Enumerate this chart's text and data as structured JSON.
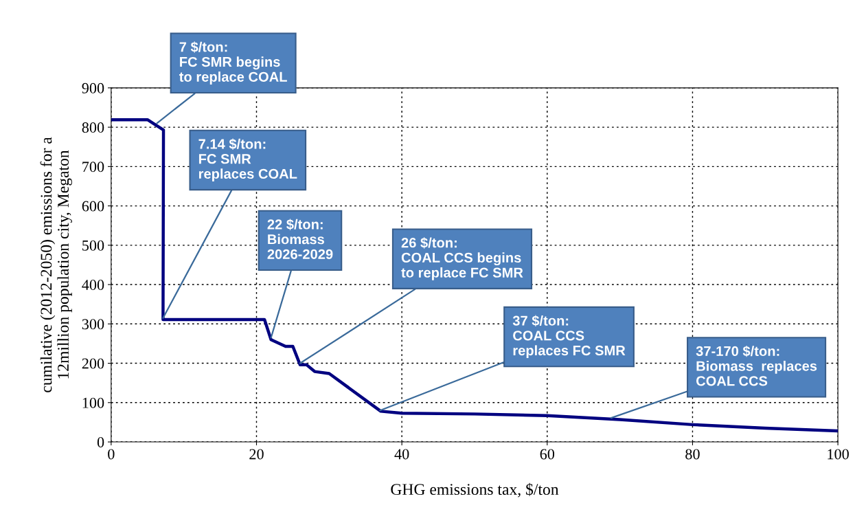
{
  "chart_data": {
    "type": "line",
    "xlabel": "GHG emissions tax, $/ton",
    "ylabel": "cumilative (2012-2050) emissions for a\n12million population city, Megaton",
    "series": [
      {
        "color": "#000080",
        "x": [
          0,
          5,
          7.2,
          7.14,
          21.1,
          22,
          24,
          25,
          26,
          26.9,
          28,
          30,
          37.1,
          40,
          50,
          60,
          70,
          80,
          90,
          100
        ],
        "values": [
          819,
          819,
          793,
          311,
          311,
          260,
          243,
          243,
          196,
          196,
          179,
          174,
          78,
          73,
          71,
          67,
          57,
          44,
          35,
          28
        ]
      }
    ],
    "xlim": [
      0,
      100
    ],
    "xticks": [
      0,
      20,
      40,
      60,
      80,
      100
    ],
    "ylim": [
      0,
      900
    ],
    "yticks": [
      0,
      100,
      200,
      300,
      400,
      500,
      600,
      700,
      800,
      900
    ],
    "grid": true,
    "line_style": "solid",
    "marker": "none",
    "annotations": [
      {
        "text": "7 $/ton:\nFC SMR begins\nto replace COAL",
        "x": 6.3,
        "y": 810
      },
      {
        "text": "7.14 $/ton:\nFC SMR\nreplaces COAL",
        "x": 7.14,
        "y": 315
      },
      {
        "text": "22 $/ton:\nBiomass\n2026-2029",
        "x": 22,
        "y": 265
      },
      {
        "text": "26 $/ton:\nCOAL CCS begins\nto replace FC SMR",
        "x": 26,
        "y": 200
      },
      {
        "text": "37 $/ton:\nCOAL CCS\nreplaces FC SMR",
        "x": 37,
        "y": 80
      },
      {
        "text": "37-170 $/ton:\nBiomass  replaces\nCOAL CCS",
        "x": 68.8,
        "y": 61
      }
    ]
  }
}
